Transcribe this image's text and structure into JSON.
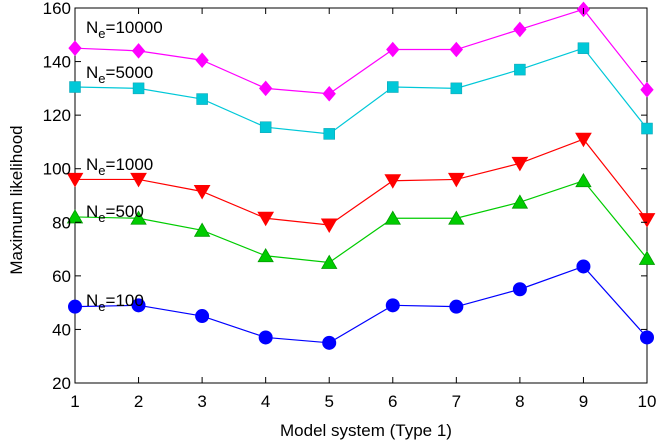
{
  "chart_data": {
    "type": "line",
    "xlabel": "Model system (Type 1)",
    "ylabel": "Maximum likelihood",
    "xlim": [
      1,
      10
    ],
    "ylim": [
      20,
      160
    ],
    "xticks": [
      "1",
      "2",
      "3",
      "4",
      "5",
      "6",
      "7",
      "8",
      "9",
      "10"
    ],
    "yticks": [
      "20",
      "40",
      "60",
      "80",
      "100",
      "120",
      "140",
      "160"
    ],
    "grid": false,
    "x": [
      1,
      2,
      3,
      4,
      5,
      6,
      7,
      8,
      9,
      10
    ],
    "series": [
      {
        "name": "N",
        "name_sub": "e",
        "name_suffix": "=10000",
        "color": "#ff00ff",
        "marker": "diamond",
        "values": [
          145,
          144,
          140.5,
          130,
          128,
          144.5,
          144.5,
          152,
          159.5,
          129.5
        ]
      },
      {
        "name": "N",
        "name_sub": "e",
        "name_suffix": "=5000",
        "color": "#00c8d8",
        "marker": "square",
        "values": [
          130.5,
          130,
          126,
          115.5,
          113,
          130.5,
          130,
          137,
          145,
          115
        ]
      },
      {
        "name": "N",
        "name_sub": "e",
        "name_suffix": "=1000",
        "color": "#ff0000",
        "marker": "triangle-down",
        "values": [
          96,
          96,
          91.5,
          81.5,
          79,
          95.5,
          96,
          102,
          111,
          81
        ]
      },
      {
        "name": "N",
        "name_sub": "e",
        "name_suffix": "=500",
        "color": "#00cc00",
        "marker": "triangle-up",
        "values": [
          82,
          81.5,
          77,
          67.5,
          65,
          81.5,
          81.5,
          87.5,
          95.5,
          66.5
        ]
      },
      {
        "name": "N",
        "name_sub": "e",
        "name_suffix": "=100",
        "color": "#0000ff",
        "marker": "circle",
        "values": [
          48.5,
          49,
          45,
          37,
          35,
          49,
          48.5,
          55,
          63.5,
          37
        ]
      }
    ]
  }
}
